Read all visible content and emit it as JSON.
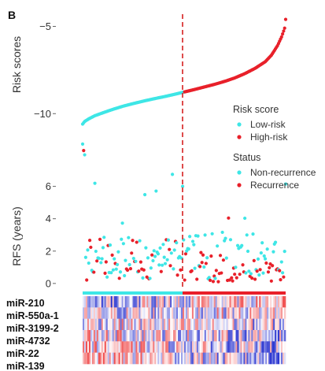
{
  "panel_label": "B",
  "chart_data": [
    {
      "type": "scatter",
      "ylabel": "Risk scores",
      "y_ticks": [
        -10,
        -5
      ],
      "ylim": [
        -10.8,
        -4.3
      ],
      "grid": false,
      "legend_placement": "right",
      "legend_title": "Risk score",
      "series": [
        {
          "name": "Low-risk",
          "color": "#3ee6e6",
          "anchors": [
            [
              0.0,
              -10.6
            ],
            [
              0.01,
              -10.45
            ],
            [
              0.03,
              -10.3
            ],
            [
              0.06,
              -10.12
            ],
            [
              0.1,
              -9.95
            ],
            [
              0.15,
              -9.75
            ],
            [
              0.2,
              -9.57
            ],
            [
              0.25,
              -9.42
            ],
            [
              0.3,
              -9.28
            ],
            [
              0.35,
              -9.15
            ],
            [
              0.4,
              -9.03
            ],
            [
              0.45,
              -8.9
            ],
            [
              0.5,
              -8.76
            ]
          ]
        },
        {
          "name": "High-risk",
          "color": "#e8202a",
          "anchors": [
            [
              0.5,
              -8.76
            ],
            [
              0.55,
              -8.62
            ],
            [
              0.6,
              -8.47
            ],
            [
              0.65,
              -8.32
            ],
            [
              0.7,
              -8.15
            ],
            [
              0.75,
              -7.95
            ],
            [
              0.8,
              -7.7
            ],
            [
              0.85,
              -7.4
            ],
            [
              0.9,
              -7.02
            ],
            [
              0.93,
              -6.65
            ],
            [
              0.96,
              -6.1
            ],
            [
              0.98,
              -5.6
            ],
            [
              0.995,
              -5.1
            ],
            [
              1.0,
              -4.6
            ]
          ]
        }
      ]
    },
    {
      "type": "scatter",
      "ylabel": "RFS (years)",
      "y_ticks": [
        0,
        2,
        4,
        6
      ],
      "ylim": [
        -0.3,
        9.0
      ],
      "cutoff_x": 0.5,
      "grid": false,
      "legend_placement": "right",
      "legend_title": "Status",
      "series": [
        {
          "name": "Non-recurrence",
          "color": "#3ee6e6"
        },
        {
          "name": "Recurrence",
          "color": "#e8202a"
        }
      ]
    },
    {
      "type": "heatmap",
      "rows": [
        "miR-210",
        "miR-550a-1",
        "miR-3199-2",
        "miR-4732",
        "miR-22",
        "miR-139"
      ],
      "group_bar": [
        {
          "name": "Low-risk",
          "color": "#3ee6e6",
          "from": 0.0,
          "to": 0.5
        },
        {
          "name": "High-risk",
          "color": "#e8202a",
          "from": 0.5,
          "to": 1.0
        }
      ],
      "low_color": "#2a35d0",
      "mid_color": "#ffffff",
      "high_color": "#f05050"
    }
  ]
}
